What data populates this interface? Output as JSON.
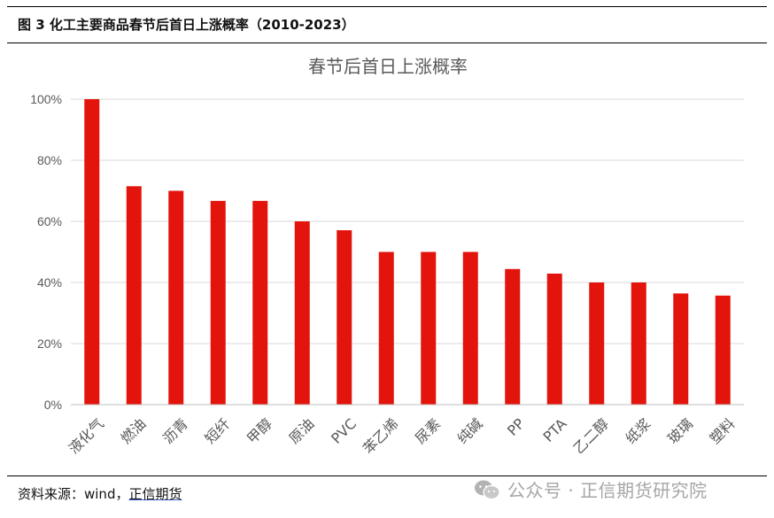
{
  "figure": {
    "title": "图 3  化工主要商品春节后首日上涨概率（2010-2023）",
    "source_label": "资料来源：wind，",
    "source_brand": "正信期货"
  },
  "watermark": {
    "text": "公众号 · 正信期货研究院",
    "icon": "wechat-icon"
  },
  "colors": {
    "bar": "#e3140b",
    "grid": "#d9d9d9",
    "axis": "#bfbfbf"
  },
  "chart_data": {
    "type": "bar",
    "title": "春节后首日上涨概率",
    "categories": [
      "液化气",
      "燃油",
      "沥青",
      "短纤",
      "甲醇",
      "原油",
      "PVC",
      "苯乙烯",
      "尿素",
      "纯碱",
      "PP",
      "PTA",
      "乙二醇",
      "纸浆",
      "玻璃",
      "塑料"
    ],
    "values": [
      100,
      71.5,
      70,
      66.7,
      66.7,
      60,
      57.1,
      50,
      50,
      50,
      44.4,
      42.9,
      40,
      40,
      36.4,
      35.7
    ],
    "ylim": [
      0,
      100
    ],
    "yticks": [
      "0%",
      "20%",
      "40%",
      "60%",
      "80%",
      "100%"
    ],
    "grid": true,
    "legend": "none"
  }
}
